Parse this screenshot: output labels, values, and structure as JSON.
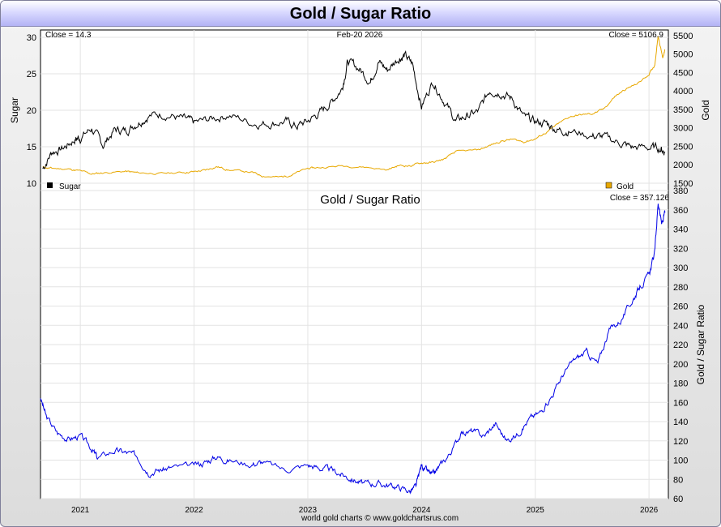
{
  "title": "Gold / Sugar Ratio",
  "footer": "world gold charts © www.goldchartsrus.com",
  "colors": {
    "sugar": "#000000",
    "gold": "#e8a800",
    "ratio": "#0000e6",
    "grid": "#e3e3e3"
  },
  "top_panel": {
    "date_label": "Feb-20  2026",
    "sugar_close": "Close = 14.3",
    "gold_close": "Close = 5106.9",
    "left_axis_label": "Sugar",
    "right_axis_label": "Gold",
    "legend_sugar": "Sugar",
    "legend_gold": "Gold"
  },
  "bottom_panel": {
    "title": "Gold  /  Sugar Ratio",
    "close": "Close = 357.126",
    "right_axis_label": "Gold / Sugar Ratio"
  },
  "chart_data": [
    {
      "type": "line",
      "panel": "top",
      "xlim": [
        2020.65,
        2026.17
      ],
      "x_ticks": [
        "2021",
        "2022",
        "2023",
        "2024",
        "2025",
        "2026"
      ],
      "grid": true,
      "left_axis": {
        "label": "Sugar",
        "ylim": [
          9,
          31
        ],
        "ticks": [
          10,
          15,
          20,
          25,
          30
        ]
      },
      "right_axis": {
        "label": "Gold",
        "ylim": [
          1300,
          5650
        ],
        "ticks": [
          1500,
          2000,
          2500,
          3000,
          3500,
          4000,
          4500,
          5000,
          5500
        ]
      },
      "series": [
        {
          "name": "Sugar",
          "axis": "left",
          "x": [
            2020.67,
            2020.75,
            2020.85,
            2020.95,
            2021.0,
            2021.1,
            2021.2,
            2021.3,
            2021.4,
            2021.5,
            2021.6,
            2021.75,
            2021.9,
            2022.0,
            2022.15,
            2022.3,
            2022.5,
            2022.65,
            2022.8,
            2022.9,
            2023.0,
            2023.1,
            2023.2,
            2023.3,
            2023.35,
            2023.45,
            2023.55,
            2023.62,
            2023.7,
            2023.8,
            2023.85,
            2023.92,
            2024.0,
            2024.1,
            2024.2,
            2024.3,
            2024.4,
            2024.5,
            2024.6,
            2024.7,
            2024.8,
            2024.9,
            2025.0,
            2025.1,
            2025.2,
            2025.3,
            2025.5,
            2025.6,
            2025.75,
            2025.85,
            2026.0,
            2026.1,
            2026.14
          ],
          "values": [
            12.0,
            14.3,
            14.8,
            16.0,
            16.3,
            17.5,
            15.2,
            17.3,
            17.2,
            18.3,
            19.3,
            19.5,
            18.8,
            18.2,
            18.8,
            19.4,
            18.3,
            18.2,
            18.5,
            17.8,
            18.5,
            19.6,
            21.0,
            23.0,
            26.7,
            25.7,
            24.0,
            26.7,
            25.5,
            27.2,
            27.5,
            26.3,
            20.5,
            24.0,
            21.3,
            18.5,
            19.2,
            19.8,
            22.8,
            22.5,
            21.5,
            19.0,
            18.4,
            18.2,
            17.3,
            17.2,
            16.5,
            16.3,
            15.5,
            14.9,
            14.9,
            14.8,
            14.3
          ]
        },
        {
          "name": "Gold",
          "axis": "right",
          "x": [
            2020.67,
            2020.75,
            2020.9,
            2021.0,
            2021.1,
            2021.2,
            2021.4,
            2021.5,
            2021.7,
            2021.9,
            2022.0,
            2022.1,
            2022.2,
            2022.3,
            2022.5,
            2022.6,
            2022.75,
            2022.85,
            2023.0,
            2023.1,
            2023.3,
            2023.5,
            2023.7,
            2023.8,
            2023.9,
            2024.0,
            2024.1,
            2024.2,
            2024.3,
            2024.5,
            2024.6,
            2024.7,
            2024.8,
            2024.9,
            2025.0,
            2025.1,
            2025.2,
            2025.3,
            2025.4,
            2025.5,
            2025.6,
            2025.7,
            2025.8,
            2025.9,
            2026.0,
            2026.05,
            2026.08,
            2026.12,
            2026.14
          ],
          "values": [
            1930,
            1900,
            1880,
            1830,
            1750,
            1780,
            1820,
            1780,
            1760,
            1790,
            1810,
            1850,
            1950,
            1860,
            1800,
            1700,
            1660,
            1720,
            1900,
            1920,
            1970,
            1940,
            1860,
            1980,
            1970,
            2050,
            2060,
            2150,
            2350,
            2400,
            2520,
            2640,
            2690,
            2620,
            2700,
            2880,
            3100,
            3300,
            3350,
            3380,
            3500,
            3850,
            4050,
            4200,
            4450,
            4700,
            5500,
            4900,
            5107
          ]
        }
      ]
    },
    {
      "type": "line",
      "panel": "bottom",
      "title": "Gold  /  Sugar Ratio",
      "xlim": [
        2020.65,
        2026.17
      ],
      "x_ticks": [
        "2021",
        "2022",
        "2023",
        "2024",
        "2025",
        "2026"
      ],
      "grid": true,
      "right_axis": {
        "label": "Gold / Sugar Ratio",
        "ylim": [
          60,
          380
        ],
        "ticks": [
          60,
          80,
          100,
          120,
          140,
          160,
          180,
          200,
          220,
          240,
          260,
          280,
          300,
          320,
          340,
          360,
          380
        ]
      },
      "series": [
        {
          "name": "Gold / Sugar Ratio",
          "axis": "right",
          "x": [
            2020.65,
            2020.7,
            2020.8,
            2020.9,
            2021.0,
            2021.1,
            2021.15,
            2021.3,
            2021.4,
            2021.5,
            2021.6,
            2021.7,
            2021.8,
            2022.0,
            2022.1,
            2022.2,
            2022.3,
            2022.5,
            2022.6,
            2022.8,
            2023.0,
            2023.1,
            2023.2,
            2023.3,
            2023.4,
            2023.5,
            2023.6,
            2023.7,
            2023.8,
            2023.9,
            2023.95,
            2024.0,
            2024.05,
            2024.1,
            2024.15,
            2024.25,
            2024.35,
            2024.45,
            2024.55,
            2024.65,
            2024.75,
            2024.85,
            2024.95,
            2025.05,
            2025.15,
            2025.25,
            2025.35,
            2025.45,
            2025.55,
            2025.65,
            2025.75,
            2025.85,
            2025.92,
            2026.0,
            2026.05,
            2026.08,
            2026.11,
            2026.14
          ],
          "values": [
            165,
            145,
            128,
            122,
            125,
            112,
            102,
            110,
            108,
            104,
            88,
            90,
            92,
            94,
            98,
            104,
            100,
            96,
            98,
            90,
            95,
            92,
            90,
            85,
            80,
            75,
            76,
            74,
            72,
            68,
            72,
            95,
            88,
            84,
            92,
            107,
            128,
            130,
            125,
            138,
            120,
            128,
            143,
            150,
            168,
            190,
            205,
            212,
            200,
            235,
            245,
            265,
            280,
            292,
            315,
            368,
            345,
            357
          ]
        }
      ]
    }
  ]
}
